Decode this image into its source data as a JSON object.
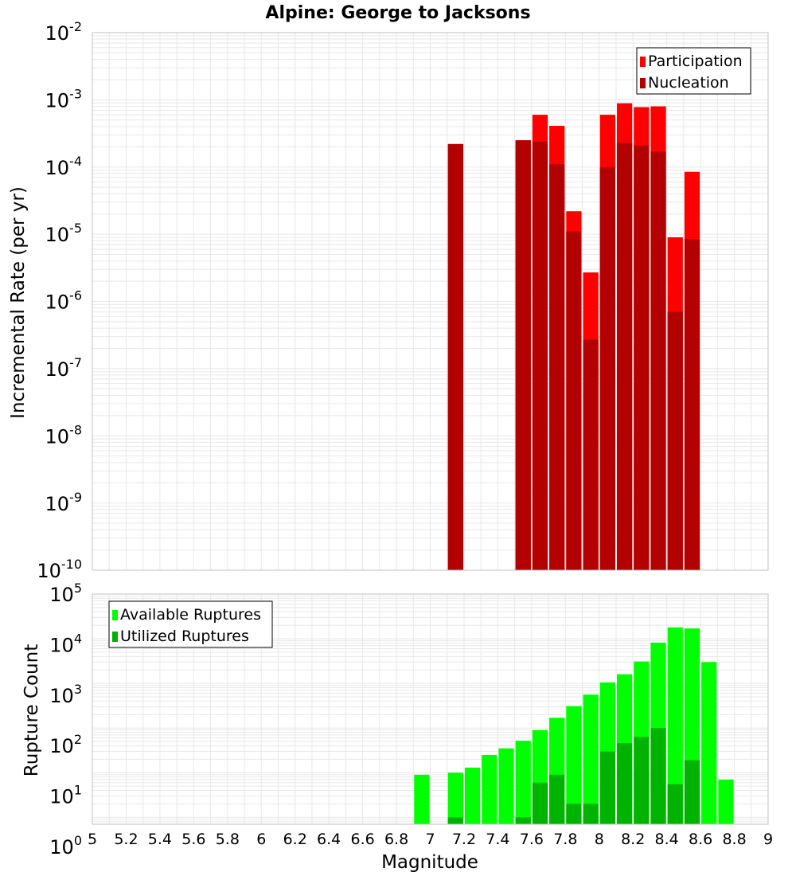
{
  "title": "Alpine: George to Jacksons",
  "xlabel": "Magnitude",
  "colors": {
    "participation": "#ff0000",
    "nucleation": "#b30000",
    "available": "#00ff00",
    "utilized": "#00b300",
    "grid": "#e8e8e8",
    "frame": "#c0c0c0"
  },
  "chart_data": [
    {
      "type": "bar",
      "ylabel": "Incremental Rate (per yr)",
      "yscale": "log",
      "ylim": [
        1e-10,
        0.01
      ],
      "xlim": [
        5,
        9
      ],
      "grid": true,
      "legend_position": "top-right",
      "x_ticks": [
        "5",
        "5.2",
        "5.4",
        "5.6",
        "5.8",
        "6",
        "6.2",
        "6.4",
        "6.6",
        "6.8",
        "7",
        "7.2",
        "7.4",
        "7.6",
        "7.8",
        "8",
        "8.2",
        "8.4",
        "8.6",
        "8.8",
        "9"
      ],
      "y_ticks": [
        {
          "base": "10",
          "exp": "-2"
        },
        {
          "base": "10",
          "exp": "-3"
        },
        {
          "base": "10",
          "exp": "-4"
        },
        {
          "base": "10",
          "exp": "-5"
        },
        {
          "base": "10",
          "exp": "-6"
        },
        {
          "base": "10",
          "exp": "-7"
        },
        {
          "base": "10",
          "exp": "-8"
        },
        {
          "base": "10",
          "exp": "-9"
        },
        {
          "base": "10",
          "exp": "-10"
        }
      ],
      "bin_width": 0.1,
      "series": [
        {
          "name": "Participation",
          "x": [
            7.1,
            7.5,
            7.6,
            7.7,
            7.8,
            7.9,
            8.0,
            8.1,
            8.2,
            8.3,
            8.4,
            8.5
          ],
          "values": [
            0.00022,
            0.00025,
            0.0006,
            0.00041,
            2.2e-05,
            2.7e-06,
            0.0006,
            0.00089,
            0.00078,
            0.0008,
            9e-06,
            8.5e-05
          ]
        },
        {
          "name": "Nucleation",
          "x": [
            7.1,
            7.5,
            7.6,
            7.7,
            7.8,
            7.9,
            8.0,
            8.1,
            8.2,
            8.3,
            8.4,
            8.5
          ],
          "values": [
            0.00022,
            0.00025,
            0.00024,
            0.00011,
            1.1e-05,
            2.7e-07,
            0.0001,
            0.00023,
            0.00021,
            0.00017,
            7e-07,
            8.5e-06
          ]
        }
      ]
    },
    {
      "type": "bar",
      "ylabel": "Rupture Count",
      "yscale": "log",
      "ylim": [
        0.7,
        100000
      ],
      "xlim": [
        5,
        9
      ],
      "grid": true,
      "legend_position": "top-left",
      "y_ticks": [
        {
          "base": "10",
          "exp": "5"
        },
        {
          "base": "10",
          "exp": "4"
        },
        {
          "base": "10",
          "exp": "3"
        },
        {
          "base": "10",
          "exp": "2"
        },
        {
          "base": "10",
          "exp": "1"
        },
        {
          "base": "10",
          "exp": "0"
        }
      ],
      "bin_width": 0.1,
      "series": [
        {
          "name": "Available Ruptures",
          "x": [
            6.9,
            7.1,
            7.2,
            7.3,
            7.4,
            7.5,
            7.6,
            7.7,
            7.8,
            7.9,
            8.0,
            8.1,
            8.2,
            8.3,
            8.4,
            8.5,
            8.6,
            8.7
          ],
          "values": [
            9,
            10,
            13,
            25,
            35,
            52,
            90,
            170,
            310,
            560,
            1050,
            1600,
            3100,
            8200,
            18000,
            17000,
            3000,
            7
          ]
        },
        {
          "name": "Utilized Ruptures",
          "x": [
            7.1,
            7.5,
            7.6,
            7.7,
            7.8,
            7.9,
            8.0,
            8.1,
            8.2,
            8.3,
            8.4,
            8.5
          ],
          "values": [
            1,
            1,
            6,
            9,
            2,
            2,
            30,
            46,
            63,
            100,
            5.5,
            19
          ]
        }
      ]
    }
  ]
}
